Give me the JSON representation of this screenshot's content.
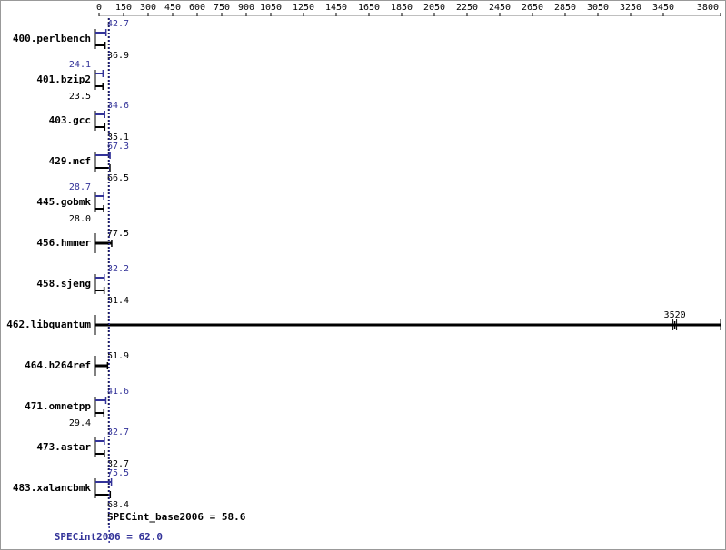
{
  "chart_data": {
    "type": "bar",
    "orientation": "horizontal",
    "categories": [
      "400.perlbench",
      "401.bzip2",
      "403.gcc",
      "429.mcf",
      "445.gobmk",
      "456.hmmer",
      "458.sjeng",
      "462.libquantum",
      "464.h264ref",
      "471.omnetpp",
      "473.astar",
      "483.xalancbmk"
    ],
    "series": [
      {
        "color": "#333399",
        "values": [
          42.7,
          24.1,
          34.6,
          67.3,
          28.7,
          null,
          32.2,
          null,
          null,
          41.6,
          32.7,
          75.5
        ],
        "value_labels": [
          "42.7",
          "24.1",
          "34.6",
          "67.3",
          "28.7",
          null,
          "32.2",
          null,
          null,
          "41.6",
          "32.7",
          "75.5"
        ]
      },
      {
        "color": "#000000",
        "values": [
          36.9,
          23.5,
          35.1,
          66.5,
          28.0,
          77.5,
          31.4,
          3520,
          51.9,
          29.4,
          32.7,
          68.4
        ],
        "value_labels": [
          "36.9",
          "23.5",
          "35.1",
          "66.5",
          "28.0",
          "77.5",
          "31.4",
          "3520",
          "51.9",
          "29.4",
          "32.7",
          "68.4"
        ]
      }
    ],
    "xlim": [
      0,
      3800
    ],
    "xticks": [
      0,
      150,
      300,
      450,
      600,
      750,
      900,
      1050,
      1250,
      1450,
      1650,
      1850,
      2050,
      2250,
      2450,
      2650,
      2850,
      3050,
      3250,
      3450,
      3800
    ],
    "summaries": [
      {
        "text": "SPECint_base2006 = 58.6",
        "value": 58.6,
        "color": "#000000"
      },
      {
        "text": "SPECint2006 = 62.0",
        "value": 62.0,
        "color": "#333399"
      }
    ]
  }
}
